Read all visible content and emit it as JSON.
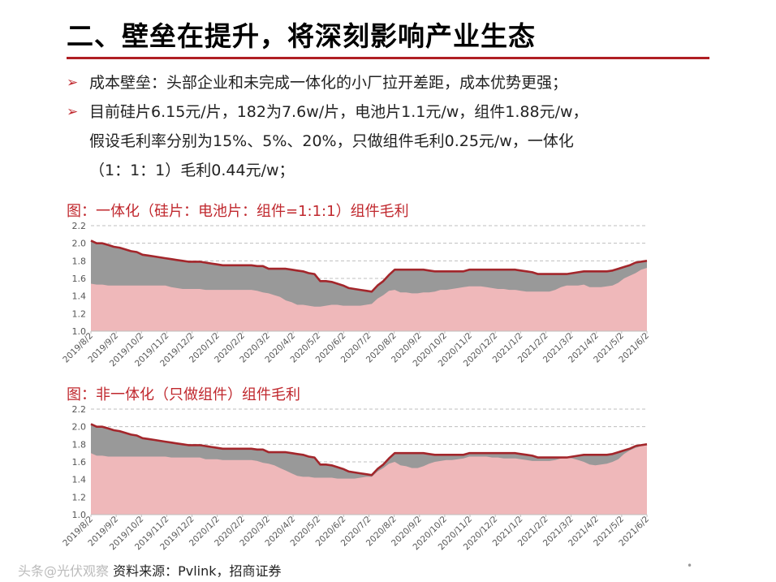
{
  "title": "二、壁垒在提升，将深刻影响产业生态",
  "bullets": [
    {
      "lines": [
        "成本壁垒：头部企业和未完成一体化的小厂拉开差距，成本优势更强；"
      ]
    },
    {
      "lines": [
        "目前硅片6.15元/片，182为7.6w/片，电池片1.1元/w，组件1.88元/w，",
        "假设毛利率分别为15%、5%、20%，只做组件毛利0.25元/w，一体化",
        "（1：1：1）毛利0.44元/w；"
      ]
    }
  ],
  "bullet_icon": "arrow-right-icon",
  "colors": {
    "accent": "#c0282e",
    "rule": "#b01e23",
    "line": "#a3262b",
    "fill_gray": "#999999",
    "fill_pink": "#efb8ba"
  },
  "chart_data": [
    {
      "type": "area",
      "title": "图：一体化（硅片：电池片：组件=1:1:1）组件毛利",
      "ylim": [
        1.0,
        2.2
      ],
      "yticks": [
        "1.0",
        "1.2",
        "1.4",
        "1.6",
        "1.8",
        "2.0",
        "2.2"
      ],
      "xticks": [
        "2019/8/2",
        "2019/9/2",
        "2019/10/2",
        "2019/11/2",
        "2019/12/2",
        "2020/1/2",
        "2020/2/2",
        "2020/3/2",
        "2020/4/2",
        "2020/5/2",
        "2020/6/2",
        "2020/7/2",
        "2020/8/2",
        "2020/9/2",
        "2020/10/2",
        "2020/11/2",
        "2020/12/2",
        "2021/1/2",
        "2021/2/2",
        "2021/3/2",
        "2021/4/2",
        "2021/5/2",
        "2021/6/2"
      ],
      "grid": true,
      "series": [
        {
          "name": "",
          "style": "line",
          "values": [
            2.03,
            2.0,
            2.0,
            1.98,
            1.96,
            1.95,
            1.93,
            1.91,
            1.9,
            1.87,
            1.86,
            1.85,
            1.84,
            1.83,
            1.82,
            1.81,
            1.8,
            1.79,
            1.79,
            1.79,
            1.78,
            1.77,
            1.76,
            1.75,
            1.75,
            1.75,
            1.75,
            1.75,
            1.75,
            1.74,
            1.74,
            1.71,
            1.71,
            1.71,
            1.71,
            1.7,
            1.69,
            1.68,
            1.66,
            1.65,
            1.57,
            1.57,
            1.56,
            1.54,
            1.52,
            1.49,
            1.48,
            1.47,
            1.46,
            1.45,
            1.52,
            1.57,
            1.64,
            1.7,
            1.7,
            1.7,
            1.7,
            1.7,
            1.7,
            1.69,
            1.68,
            1.68,
            1.68,
            1.68,
            1.68,
            1.68,
            1.7,
            1.7,
            1.7,
            1.7,
            1.7,
            1.7,
            1.7,
            1.7,
            1.7,
            1.69,
            1.68,
            1.67,
            1.65,
            1.65,
            1.65,
            1.65,
            1.65,
            1.65,
            1.66,
            1.67,
            1.68,
            1.68,
            1.68,
            1.68,
            1.68,
            1.69,
            1.71,
            1.73,
            1.75,
            1.78,
            1.79,
            1.8
          ]
        },
        {
          "name": "",
          "style": "area",
          "values": [
            1.54,
            1.53,
            1.53,
            1.52,
            1.52,
            1.52,
            1.52,
            1.52,
            1.52,
            1.52,
            1.52,
            1.52,
            1.52,
            1.52,
            1.5,
            1.49,
            1.48,
            1.48,
            1.48,
            1.48,
            1.47,
            1.47,
            1.47,
            1.47,
            1.47,
            1.47,
            1.47,
            1.47,
            1.47,
            1.46,
            1.44,
            1.43,
            1.41,
            1.39,
            1.35,
            1.33,
            1.3,
            1.3,
            1.29,
            1.28,
            1.28,
            1.29,
            1.3,
            1.3,
            1.29,
            1.29,
            1.29,
            1.29,
            1.3,
            1.31,
            1.37,
            1.41,
            1.46,
            1.47,
            1.44,
            1.44,
            1.43,
            1.43,
            1.44,
            1.44,
            1.45,
            1.47,
            1.47,
            1.48,
            1.49,
            1.5,
            1.51,
            1.51,
            1.51,
            1.5,
            1.49,
            1.48,
            1.48,
            1.47,
            1.47,
            1.46,
            1.45,
            1.45,
            1.45,
            1.45,
            1.45,
            1.47,
            1.5,
            1.52,
            1.52,
            1.52,
            1.53,
            1.5,
            1.5,
            1.5,
            1.51,
            1.52,
            1.55,
            1.6,
            1.63,
            1.66,
            1.7,
            1.72
          ]
        }
      ]
    },
    {
      "type": "area",
      "title": "图：非一体化（只做组件）组件毛利",
      "ylim": [
        1.0,
        2.2
      ],
      "yticks": [
        "1.0",
        "1.2",
        "1.4",
        "1.6",
        "1.8",
        "2.0",
        "2.2"
      ],
      "xticks": [
        "2019/8/2",
        "2019/9/2",
        "2019/10/2",
        "2019/11/2",
        "2019/12/2",
        "2020/1/2",
        "2020/2/2",
        "2020/3/2",
        "2020/4/2",
        "2020/5/2",
        "2020/6/2",
        "2020/7/2",
        "2020/8/2",
        "2020/9/2",
        "2020/10/2",
        "2020/11/2",
        "2020/12/2",
        "2021/1/2",
        "2021/2/2",
        "2021/3/2",
        "2021/4/2",
        "2021/5/2",
        "2021/6/2"
      ],
      "grid": true,
      "series": [
        {
          "name": "",
          "style": "line",
          "values": [
            2.03,
            2.0,
            2.0,
            1.98,
            1.96,
            1.95,
            1.93,
            1.91,
            1.9,
            1.87,
            1.86,
            1.85,
            1.84,
            1.83,
            1.82,
            1.81,
            1.8,
            1.79,
            1.79,
            1.79,
            1.78,
            1.77,
            1.76,
            1.75,
            1.75,
            1.75,
            1.75,
            1.75,
            1.75,
            1.74,
            1.74,
            1.71,
            1.71,
            1.71,
            1.71,
            1.7,
            1.69,
            1.68,
            1.66,
            1.65,
            1.57,
            1.57,
            1.56,
            1.54,
            1.52,
            1.49,
            1.48,
            1.47,
            1.46,
            1.45,
            1.52,
            1.57,
            1.64,
            1.7,
            1.7,
            1.7,
            1.7,
            1.7,
            1.7,
            1.69,
            1.68,
            1.68,
            1.68,
            1.68,
            1.68,
            1.68,
            1.7,
            1.7,
            1.7,
            1.7,
            1.7,
            1.7,
            1.7,
            1.7,
            1.7,
            1.69,
            1.68,
            1.67,
            1.65,
            1.65,
            1.65,
            1.65,
            1.65,
            1.65,
            1.66,
            1.67,
            1.68,
            1.68,
            1.68,
            1.68,
            1.68,
            1.69,
            1.71,
            1.73,
            1.75,
            1.78,
            1.79,
            1.8
          ]
        },
        {
          "name": "",
          "style": "area",
          "values": [
            1.7,
            1.67,
            1.67,
            1.66,
            1.66,
            1.66,
            1.66,
            1.66,
            1.66,
            1.66,
            1.66,
            1.66,
            1.66,
            1.66,
            1.65,
            1.65,
            1.65,
            1.65,
            1.65,
            1.65,
            1.63,
            1.63,
            1.63,
            1.62,
            1.62,
            1.62,
            1.62,
            1.62,
            1.62,
            1.61,
            1.59,
            1.58,
            1.56,
            1.53,
            1.5,
            1.47,
            1.44,
            1.43,
            1.43,
            1.42,
            1.42,
            1.42,
            1.42,
            1.41,
            1.41,
            1.41,
            1.41,
            1.42,
            1.43,
            1.43,
            1.49,
            1.53,
            1.58,
            1.6,
            1.56,
            1.55,
            1.53,
            1.53,
            1.55,
            1.58,
            1.6,
            1.61,
            1.62,
            1.62,
            1.63,
            1.64,
            1.66,
            1.66,
            1.66,
            1.66,
            1.65,
            1.65,
            1.64,
            1.64,
            1.64,
            1.63,
            1.62,
            1.61,
            1.61,
            1.61,
            1.61,
            1.62,
            1.64,
            1.65,
            1.64,
            1.62,
            1.6,
            1.57,
            1.56,
            1.57,
            1.58,
            1.6,
            1.63,
            1.69,
            1.73,
            1.76,
            1.78,
            1.79
          ]
        }
      ]
    }
  ],
  "source": {
    "ghost": "头条@光伏观察",
    "text": "资料来源：Pvlink，招商证券"
  },
  "page_mark": "•"
}
